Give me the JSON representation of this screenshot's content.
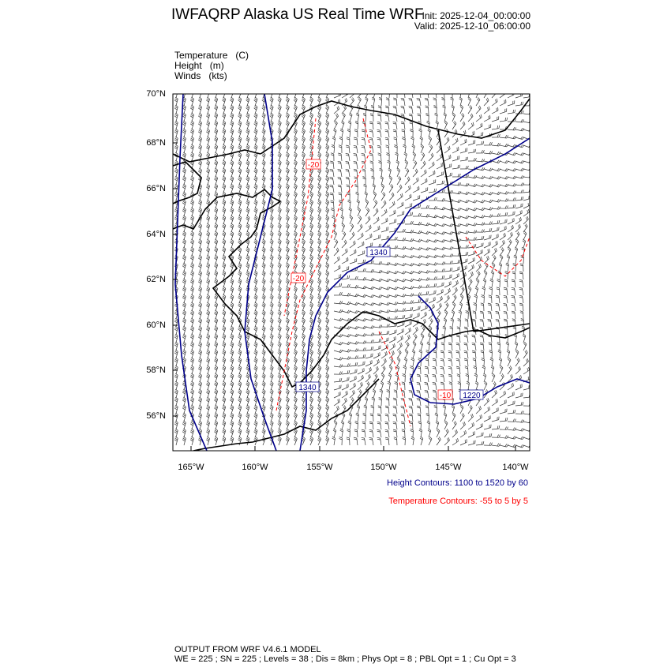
{
  "header": {
    "title": "IWFAQRP Alaska US Real Time WRF",
    "init": "Init: 2025-12-04_00:00:00",
    "valid": "Valid: 2025-12-10_06:00:00"
  },
  "fields": [
    {
      "name": "Temperature",
      "unit": "(C)"
    },
    {
      "name": "Height",
      "unit": "(m)"
    },
    {
      "name": "Winds",
      "unit": "(kts)"
    }
  ],
  "map": {
    "lat_labels": [
      "70°N",
      "68°N",
      "66°N",
      "64°N",
      "62°N",
      "60°N",
      "58°N",
      "56°N"
    ],
    "lon_labels": [
      "165°W",
      "160°W",
      "155°W",
      "150°W",
      "145°W",
      "140°W"
    ],
    "height_contour_labels": [
      "1340",
      "1340",
      "1220"
    ],
    "temperature_contour_labels": [
      "-20",
      "-20",
      "-10"
    ],
    "colors": {
      "height": "#00008b",
      "temperature": "#ff0000",
      "coast": "#000000",
      "barbs": "#333333"
    }
  },
  "legend": {
    "height": "Height Contours: 1100 to 1520 by 60",
    "temperature": "Temperature Contours: -55 to 5 by 5"
  },
  "footer": {
    "line1": "OUTPUT FROM WRF V4.6.1 MODEL",
    "line2": "WE = 225 ; SN = 225 ; Levels = 38 ; Dis = 8km ; Phys Opt = 8 ; PBL Opt = 1 ; Cu Opt = 3"
  }
}
